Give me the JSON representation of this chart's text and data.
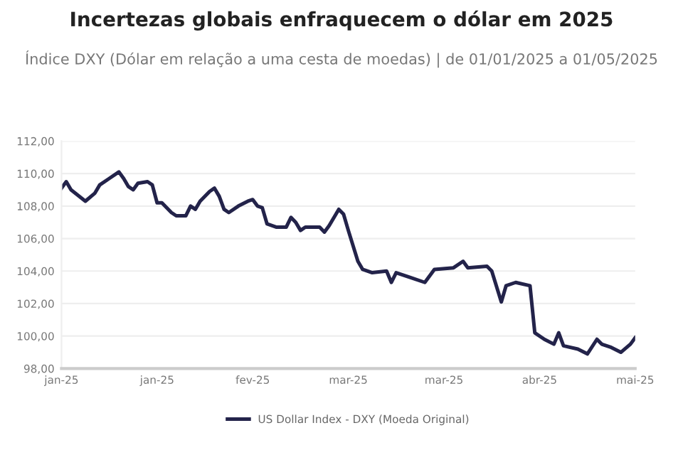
{
  "chart_data": {
    "type": "line",
    "title": "Incertezas globais enfraquecem o dólar em 2025",
    "subtitle": "Índice DXY (Dólar em relação a uma cesta de moedas) | de 01/01/2025 a 01/05/2025",
    "x": [
      "2025-01-01",
      "2025-01-02",
      "2025-01-03",
      "2025-01-06",
      "2025-01-08",
      "2025-01-09",
      "2025-01-11",
      "2025-01-13",
      "2025-01-14",
      "2025-01-15",
      "2025-01-16",
      "2025-01-17",
      "2025-01-19",
      "2025-01-20",
      "2025-01-21",
      "2025-01-22",
      "2025-01-24",
      "2025-01-25",
      "2025-01-27",
      "2025-01-28",
      "2025-01-29",
      "2025-01-30",
      "2025-02-01",
      "2025-02-02",
      "2025-02-03",
      "2025-02-04",
      "2025-02-05",
      "2025-02-07",
      "2025-02-09",
      "2025-02-10",
      "2025-02-11",
      "2025-02-12",
      "2025-02-13",
      "2025-02-15",
      "2025-02-17",
      "2025-02-18",
      "2025-02-19",
      "2025-02-20",
      "2025-02-21",
      "2025-02-24",
      "2025-02-25",
      "2025-02-26",
      "2025-02-28",
      "2025-03-01",
      "2025-03-02",
      "2025-03-04",
      "2025-03-05",
      "2025-03-07",
      "2025-03-10",
      "2025-03-11",
      "2025-03-12",
      "2025-03-15",
      "2025-03-18",
      "2025-03-20",
      "2025-03-24",
      "2025-03-26",
      "2025-03-27",
      "2025-03-31",
      "2025-04-01",
      "2025-04-03",
      "2025-04-04",
      "2025-04-06",
      "2025-04-09",
      "2025-04-10",
      "2025-04-12",
      "2025-04-14",
      "2025-04-15",
      "2025-04-16",
      "2025-04-19",
      "2025-04-21",
      "2025-04-23",
      "2025-04-24",
      "2025-04-26",
      "2025-04-28",
      "2025-04-30",
      "2025-05-01"
    ],
    "series": [
      {
        "name": "US Dollar Index - DXY (Moeda Original)",
        "color": "#23234a",
        "values": [
          109.1,
          109.5,
          109.0,
          108.3,
          108.8,
          109.3,
          109.7,
          110.1,
          109.7,
          109.2,
          109.0,
          109.4,
          109.5,
          109.3,
          108.2,
          108.2,
          107.6,
          107.4,
          107.4,
          108.0,
          107.8,
          108.3,
          108.9,
          109.1,
          108.6,
          107.8,
          107.6,
          108.0,
          108.3,
          108.4,
          108.0,
          107.9,
          106.9,
          106.7,
          106.7,
          107.3,
          107.0,
          106.5,
          106.7,
          106.7,
          106.4,
          106.8,
          107.8,
          107.5,
          106.5,
          104.6,
          104.1,
          103.9,
          104.0,
          103.3,
          103.9,
          103.6,
          103.3,
          104.1,
          104.2,
          104.6,
          104.2,
          104.3,
          104.0,
          102.1,
          103.1,
          103.3,
          103.1,
          100.2,
          99.8,
          99.5,
          100.2,
          99.4,
          99.2,
          98.9,
          99.8,
          99.5,
          99.3,
          99.0,
          99.5,
          99.9
        ]
      }
    ],
    "xlim": [
      "2025-01-01",
      "2025-05-01"
    ],
    "xticks": [
      {
        "value": "2025-01-01",
        "label": "jan-25"
      },
      {
        "value": "2025-01-21",
        "label": "jan-25"
      },
      {
        "value": "2025-02-10",
        "label": "fev-25"
      },
      {
        "value": "2025-03-02",
        "label": "mar-25"
      },
      {
        "value": "2025-03-22",
        "label": "mar-25"
      },
      {
        "value": "2025-04-11",
        "label": "abr-25"
      },
      {
        "value": "2025-05-01",
        "label": "mai-25"
      }
    ],
    "ylim": [
      98,
      112
    ],
    "yticks": [
      {
        "value": 98,
        "label": "98,00"
      },
      {
        "value": 100,
        "label": "100,00"
      },
      {
        "value": 102,
        "label": "102,00"
      },
      {
        "value": 104,
        "label": "104,00"
      },
      {
        "value": 106,
        "label": "106,00"
      },
      {
        "value": 108,
        "label": "108,00"
      },
      {
        "value": 110,
        "label": "110,00"
      },
      {
        "value": 112,
        "label": "112,00"
      }
    ],
    "grid": "y",
    "legend": "bottom",
    "marker": "none",
    "line_style": "solid"
  }
}
